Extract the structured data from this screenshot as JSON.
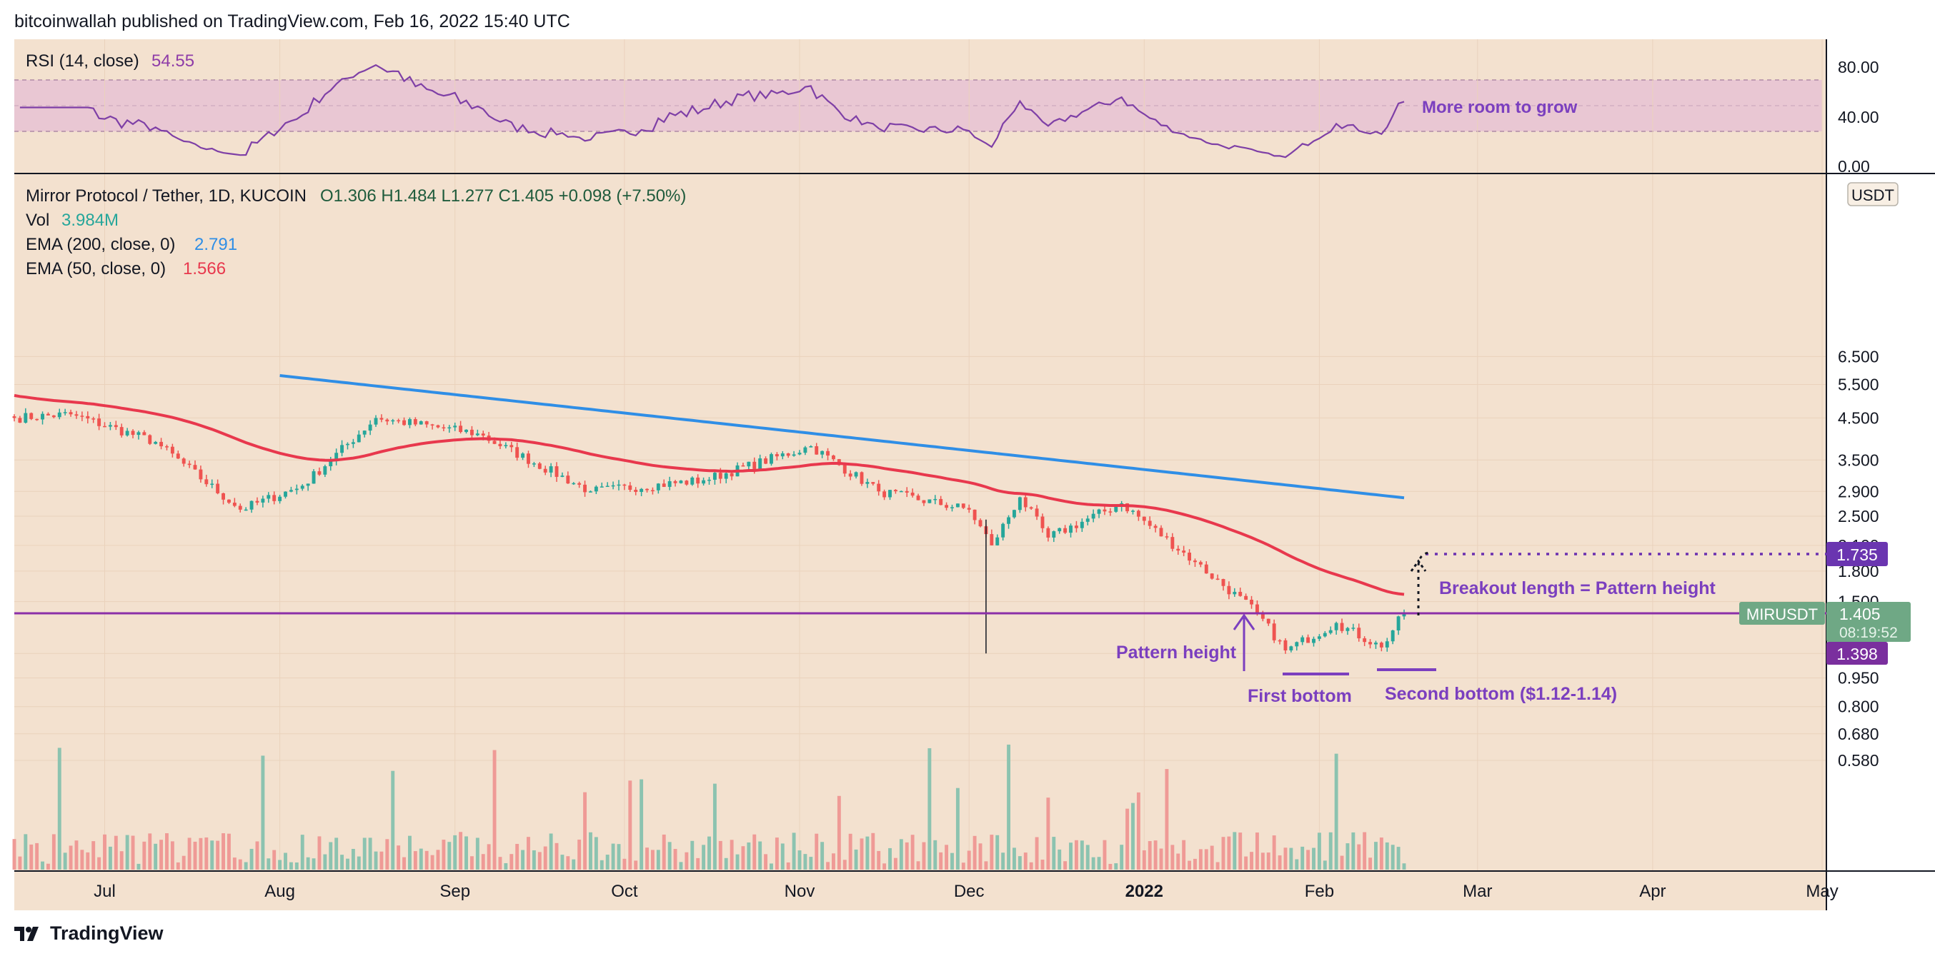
{
  "header": {
    "publisher_line": "bitcoinwallah published on TradingView.com, Feb 16, 2022 15:40 UTC"
  },
  "footer": {
    "brand": "TradingView"
  },
  "colors": {
    "background": "#f3e1cf",
    "rsi_band": "#e9c7d3",
    "rsi_line": "#7e3fa6",
    "ema200": "#2f8ee6",
    "ema50": "#e8384d",
    "up_candle": "#26a69a",
    "down_candle": "#ef5350",
    "vol_up": "#8cc3b0",
    "vol_down": "#ef9a96",
    "annotation": "#7b3fbf",
    "price_tag": "#5f9e7a"
  },
  "rsi_panel": {
    "label": "RSI (14, close)",
    "value": "54.55",
    "annotation": "More room to grow",
    "ticks": [
      "80.00",
      "40.00",
      "0.00"
    ]
  },
  "main_legend": {
    "symbol": "Mirror Protocol / Tether, 1D, KUCOIN",
    "ohlc": "O1.306  H1.484  L1.277  C1.405  +0.098 (+7.50%)",
    "vol_label": "Vol",
    "vol_value": "3.984M",
    "ema200_label": "EMA (200, close, 0)",
    "ema200_value": "2.791",
    "ema50_label": "EMA (50, close, 0)",
    "ema50_value": "1.566"
  },
  "annotations": {
    "pattern_height": "Pattern height",
    "first_bottom": "First bottom",
    "second_bottom": "Second bottom ($1.12-1.14)",
    "breakout": "Breakout length = Pattern height"
  },
  "price_tags": {
    "currency": "USDT",
    "target": "1.735",
    "symbol": "MIRUSDT",
    "last": "1.405",
    "countdown": "08:19:52",
    "level": "1.398"
  },
  "chart_data": {
    "type": "candlestick",
    "symbol": "MIRUSDT",
    "interval": "1D",
    "y_scale": "log",
    "y_ticks": [
      "6.500",
      "5.500",
      "4.500",
      "3.500",
      "2.900",
      "2.500",
      "2.100",
      "1.800",
      "1.500",
      "1.100",
      "0.950",
      "0.800",
      "0.680",
      "0.580"
    ],
    "x_ticks": [
      "Jul",
      "Aug",
      "Sep",
      "Oct",
      "Nov",
      "Dec",
      "2022",
      "Feb",
      "Mar",
      "Apr",
      "May"
    ],
    "ylim": [
      0.55,
      6.6
    ],
    "close_path_approx": [
      {
        "date": "2021-06-15",
        "close": 4.5
      },
      {
        "date": "2021-06-25",
        "close": 4.6
      },
      {
        "date": "2021-07-10",
        "close": 3.9
      },
      {
        "date": "2021-07-25",
        "close": 2.6
      },
      {
        "date": "2021-08-05",
        "close": 3.0
      },
      {
        "date": "2021-08-18",
        "close": 4.5
      },
      {
        "date": "2021-09-05",
        "close": 4.1
      },
      {
        "date": "2021-09-25",
        "close": 2.9
      },
      {
        "date": "2021-10-15",
        "close": 3.1
      },
      {
        "date": "2021-11-03",
        "close": 3.8
      },
      {
        "date": "2021-11-15",
        "close": 2.9
      },
      {
        "date": "2021-12-01",
        "close": 2.6
      },
      {
        "date": "2021-12-05",
        "close": 2.1
      },
      {
        "date": "2021-12-10",
        "close": 2.8
      },
      {
        "date": "2021-12-15",
        "close": 2.2
      },
      {
        "date": "2021-12-28",
        "close": 2.7
      },
      {
        "date": "2022-01-10",
        "close": 1.9
      },
      {
        "date": "2022-01-21",
        "close": 1.4
      },
      {
        "date": "2022-01-26",
        "close": 1.12
      },
      {
        "date": "2022-02-04",
        "close": 1.32
      },
      {
        "date": "2022-02-12",
        "close": 1.14
      },
      {
        "date": "2022-02-16",
        "close": 1.405
      }
    ],
    "series": [
      {
        "name": "EMA (200, close, 0)",
        "last": 2.791
      },
      {
        "name": "EMA (50, close, 0)",
        "last": 1.566
      }
    ],
    "levels": {
      "neckline": 1.398,
      "target": 1.735,
      "bottom_range": [
        1.12,
        1.14
      ]
    },
    "rsi": {
      "last": 54.55,
      "band": [
        30,
        70
      ],
      "ylim": [
        0,
        100
      ]
    }
  }
}
